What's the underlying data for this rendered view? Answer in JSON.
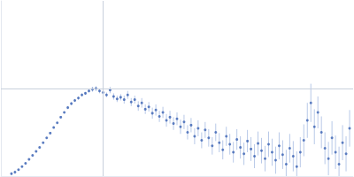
{
  "chart_data": {
    "type": "scatter",
    "color": "#3a62b3",
    "x": [
      0.18,
      0.24,
      0.3,
      0.36,
      0.42,
      0.48,
      0.54,
      0.6,
      0.66,
      0.72,
      0.78,
      0.84,
      0.9,
      0.96,
      1.02,
      1.08,
      1.14,
      1.2,
      1.26,
      1.32,
      1.38,
      1.44,
      1.5,
      1.56,
      1.62,
      1.68,
      1.74,
      1.8,
      1.86,
      1.92,
      1.98,
      2.04,
      2.1,
      2.16,
      2.22,
      2.28,
      2.34,
      2.4,
      2.46,
      2.52,
      2.58,
      2.64,
      2.7,
      2.76,
      2.82,
      2.88,
      2.94,
      3.0,
      3.06,
      3.12,
      3.18,
      3.24,
      3.3,
      3.36,
      3.42,
      3.48,
      3.54,
      3.6,
      3.66,
      3.72,
      3.78,
      3.84,
      3.9,
      3.96,
      4.02,
      4.08,
      4.14,
      4.2,
      4.26,
      4.32,
      4.38,
      4.44,
      4.5,
      4.56,
      4.62,
      4.68,
      4.74,
      4.8,
      4.86,
      4.92,
      4.98,
      5.04,
      5.1,
      5.16,
      5.22,
      5.28,
      5.34,
      5.4,
      5.46,
      5.52,
      5.58,
      5.64,
      5.7,
      5.76,
      5.82,
      5.88,
      5.94
    ],
    "values": [
      0.03,
      0.05,
      0.08,
      0.12,
      0.16,
      0.21,
      0.26,
      0.31,
      0.36,
      0.42,
      0.48,
      0.54,
      0.61,
      0.67,
      0.74,
      0.8,
      0.86,
      0.91,
      0.95,
      0.98,
      1.02,
      1.04,
      1.07,
      1.09,
      1.1,
      1.07,
      1.05,
      1.02,
      1.08,
      1.0,
      0.97,
      0.99,
      0.96,
      1.02,
      0.93,
      0.96,
      0.88,
      0.92,
      0.84,
      0.87,
      0.79,
      0.83,
      0.75,
      0.8,
      0.7,
      0.74,
      0.66,
      0.72,
      0.62,
      0.68,
      0.55,
      0.64,
      0.5,
      0.6,
      0.45,
      0.58,
      0.48,
      0.38,
      0.55,
      0.42,
      0.33,
      0.5,
      0.4,
      0.3,
      0.46,
      0.36,
      0.28,
      0.44,
      0.34,
      0.25,
      0.41,
      0.32,
      0.22,
      0.4,
      0.3,
      0.2,
      0.38,
      0.27,
      0.15,
      0.35,
      0.25,
      0.12,
      0.3,
      0.45,
      0.7,
      0.92,
      0.62,
      0.8,
      0.55,
      0.35,
      0.22,
      0.48,
      0.3,
      0.15,
      0.42,
      0.28,
      0.6
    ],
    "errors": [
      0.02,
      0.02,
      0.01,
      0.01,
      0.01,
      0.01,
      0.01,
      0.01,
      0.01,
      0.01,
      0.01,
      0.01,
      0.01,
      0.01,
      0.01,
      0.01,
      0.02,
      0.02,
      0.02,
      0.02,
      0.02,
      0.02,
      0.02,
      0.03,
      0.03,
      0.03,
      0.03,
      0.03,
      0.04,
      0.04,
      0.04,
      0.04,
      0.05,
      0.05,
      0.05,
      0.05,
      0.06,
      0.06,
      0.06,
      0.06,
      0.07,
      0.07,
      0.07,
      0.07,
      0.08,
      0.08,
      0.08,
      0.08,
      0.09,
      0.09,
      0.09,
      0.09,
      0.1,
      0.1,
      0.1,
      0.1,
      0.11,
      0.11,
      0.11,
      0.12,
      0.12,
      0.12,
      0.13,
      0.13,
      0.13,
      0.14,
      0.14,
      0.14,
      0.15,
      0.15,
      0.15,
      0.16,
      0.16,
      0.16,
      0.17,
      0.17,
      0.17,
      0.18,
      0.18,
      0.18,
      0.19,
      0.19,
      0.19,
      0.2,
      0.22,
      0.24,
      0.22,
      0.2,
      0.2,
      0.2,
      0.21,
      0.21,
      0.21,
      0.22,
      0.22,
      0.22,
      0.23
    ],
    "xlim": [
      0,
      6
    ],
    "ylim": [
      0,
      2.2
    ],
    "reference_lines": {
      "x": 1.732,
      "y": 1.104
    },
    "tick_labels": false,
    "grid": false
  }
}
